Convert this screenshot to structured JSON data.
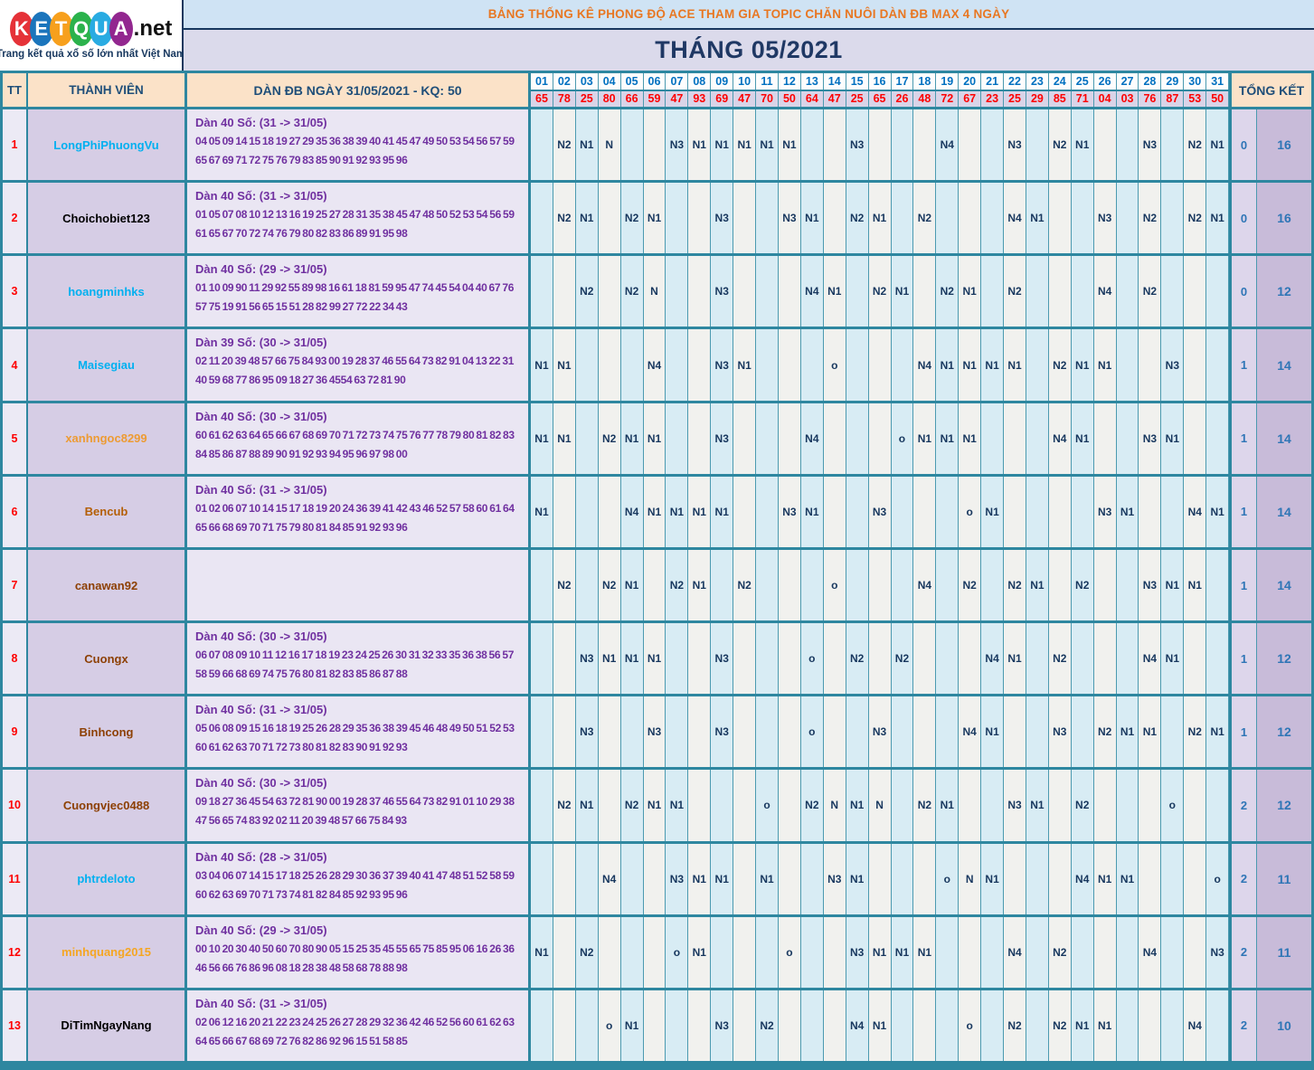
{
  "logo": {
    "letters": [
      {
        "ch": "K",
        "color": "#e53238"
      },
      {
        "ch": "E",
        "color": "#1b75bc"
      },
      {
        "ch": "T",
        "color": "#f7a01d"
      },
      {
        "ch": "Q",
        "color": "#2bb24c"
      },
      {
        "ch": "U",
        "color": "#29abe2"
      },
      {
        "ch": "A",
        "color": "#92278f"
      }
    ],
    "suffix": ".net",
    "tagline": "Trang kết quả xổ số lớn nhất Việt Nam"
  },
  "banner": {
    "title": "BẢNG THỐNG KÊ PHONG ĐỘ ACE THAM GIA TOPIC CHĂN NUÔI DÀN ĐB MAX 4 NGÀY",
    "month": "THÁNG 05/2021"
  },
  "header": {
    "tt": "TT",
    "member": "THÀNH VIÊN",
    "dan": "DÀN ĐB NGÀY 31/05/2021 - KQ: 50",
    "total": "TỔNG KẾT",
    "days": [
      "01",
      "02",
      "03",
      "04",
      "05",
      "06",
      "07",
      "08",
      "09",
      "10",
      "11",
      "12",
      "13",
      "14",
      "15",
      "16",
      "17",
      "18",
      "19",
      "20",
      "21",
      "22",
      "23",
      "24",
      "25",
      "26",
      "27",
      "28",
      "29",
      "30",
      "31"
    ],
    "day_values": [
      "65",
      "78",
      "25",
      "80",
      "66",
      "59",
      "47",
      "93",
      "69",
      "47",
      "70",
      "50",
      "64",
      "47",
      "25",
      "65",
      "26",
      "48",
      "72",
      "67",
      "23",
      "25",
      "29",
      "85",
      "71",
      "04",
      "03",
      "76",
      "87",
      "53",
      "50"
    ]
  },
  "colors": {
    "grid_teal": "#2e87a0",
    "banner_orange": "#e87722",
    "navy_text": "#17375e",
    "day_header_blue": "#0070c0",
    "value_red": "#fe0000",
    "dan_purple": "#7030a0",
    "total_blue": "#2e75b6",
    "odd_col": "#d8ecf4",
    "even_col": "#f1f1ee"
  },
  "rows": [
    {
      "tt": "1",
      "member": "LongPhiPhuongVu",
      "name_color": "#00b0f0",
      "dan_title": "Dàn 40 Số: (31 -> 31/05)",
      "dan_numbers": "04 05 09 14 15 18 19 27 29 35 36 38 39 40 41 45 47 49 50 53 54 56 57 59 65 67 69 71 72 75 76 79 83 85 90 91 92 93 95 96",
      "marks": {
        "2": "N2",
        "3": "N1",
        "4": "N",
        "7": "N3",
        "8": "N1",
        "9": "N1",
        "10": "N1",
        "11": "N1",
        "12": "N1",
        "15": "N3",
        "19": "N4",
        "22": "N3",
        "24": "N2",
        "25": "N1",
        "28": "N3",
        "30": "N2",
        "31": "N1"
      },
      "total_o": "0",
      "total_n": "16"
    },
    {
      "tt": "2",
      "member": "Choichobiet123",
      "name_color": "#000000",
      "dan_title": "Dàn 40 Số: (31 -> 31/05)",
      "dan_numbers": "01 05 07 08 10 12 13 16 19 25 27 28 31 35 38 45 47 48 50 52 53 54 56 59 61 65 67 70 72 74 76 79 80 82 83 86 89 91 95 98",
      "marks": {
        "2": "N2",
        "3": "N1",
        "5": "N2",
        "6": "N1",
        "9": "N3",
        "12": "N3",
        "13": "N1",
        "15": "N2",
        "16": "N1",
        "18": "N2",
        "22": "N4",
        "23": "N1",
        "26": "N3",
        "28": "N2",
        "30": "N2",
        "31": "N1"
      },
      "total_o": "0",
      "total_n": "16"
    },
    {
      "tt": "3",
      "member": "hoangminhks",
      "name_color": "#00b0f0",
      "dan_title": "Dàn 40 Số: (29 -> 31/05)",
      "dan_numbers": "01 10 09 90 11 29 92 55 89 98 16 61 18 81 59 95 47 74 45 54 04 40 67 76 57 75 19 91 56 65 15 51 28 82 99 27 72 22 34 43",
      "marks": {
        "3": "N2",
        "5": "N2",
        "6": "N",
        "9": "N3",
        "13": "N4",
        "14": "N1",
        "16": "N2",
        "17": "N1",
        "19": "N2",
        "20": "N1",
        "22": "N2",
        "26": "N4",
        "28": "N2"
      },
      "total_o": "0",
      "total_n": "12"
    },
    {
      "tt": "4",
      "member": "Maisegiau",
      "name_color": "#00b0f0",
      "dan_title": "Dàn 39 Số: (30 -> 31/05)",
      "dan_numbers": "02 11 20 39 48 57 66 75 84 93 00 19 28 37 46 55 64 73 82 91 04 13 22 31 40 59 68 77 86 95 09 18 27 36 4554 63 72 81 90",
      "marks": {
        "1": "N1",
        "2": "N1",
        "6": "N4",
        "9": "N3",
        "10": "N1",
        "14": "o",
        "18": "N4",
        "19": "N1",
        "20": "N1",
        "21": "N1",
        "22": "N1",
        "24": "N2",
        "25": "N1",
        "26": "N1",
        "29": "N3"
      },
      "total_o": "1",
      "total_n": "14"
    },
    {
      "tt": "5",
      "member": "xanhngoc8299",
      "name_color": "#ed9b33",
      "dan_title": "Dàn 40 Số: (30 -> 31/05)",
      "dan_numbers": "60 61 62 63 64 65 66 67 68 69 70 71 72 73 74 75 76 77 78 79 80 81 82 83 84 85 86 87 88 89 90 91 92 93 94 95 96 97 98 00",
      "marks": {
        "1": "N1",
        "2": "N1",
        "4": "N2",
        "5": "N1",
        "6": "N1",
        "9": "N3",
        "13": "N4",
        "17": "o",
        "18": "N1",
        "19": "N1",
        "20": "N1",
        "24": "N4",
        "25": "N1",
        "28": "N3",
        "29": "N1"
      },
      "total_o": "1",
      "total_n": "14"
    },
    {
      "tt": "6",
      "member": "Bencub",
      "name_color": "#b45f06",
      "dan_title": "Dàn 40 Số: (31 -> 31/05)",
      "dan_numbers": "01 02 06 07 10 14 15 17 18 19 20 24 36 39 41 42 43 46 52 57 58 60 61 64 65 66 68 69 70 71 75 79 80 81 84 85 91 92 93 96",
      "marks": {
        "1": "N1",
        "5": "N4",
        "6": "N1",
        "7": "N1",
        "8": "N1",
        "9": "N1",
        "12": "N3",
        "13": "N1",
        "16": "N3",
        "20": "o",
        "21": "N1",
        "26": "N3",
        "27": "N1",
        "30": "N4",
        "31": "N1"
      },
      "total_o": "1",
      "total_n": "14"
    },
    {
      "tt": "7",
      "member": "canawan92",
      "name_color": "#8d4004",
      "dan_title": "",
      "dan_numbers": "",
      "marks": {
        "2": "N2",
        "4": "N2",
        "5": "N1",
        "7": "N2",
        "8": "N1",
        "10": "N2",
        "14": "o",
        "18": "N4",
        "20": "N2",
        "22": "N2",
        "23": "N1",
        "25": "N2",
        "28": "N3",
        "29": "N1",
        "30": "N1"
      },
      "total_o": "1",
      "total_n": "14"
    },
    {
      "tt": "8",
      "member": "Cuongx",
      "name_color": "#8d4004",
      "dan_title": "Dàn 40 Số: (30 -> 31/05)",
      "dan_numbers": "06 07 08 09 10 11 12 16 17 18 19 23 24 25 26 30 31 32 33 35 36 38 56 57 58 59 66 68 69 74 75 76 80 81 82 83 85 86 87 88",
      "marks": {
        "3": "N3",
        "4": "N1",
        "5": "N1",
        "6": "N1",
        "9": "N3",
        "13": "o",
        "15": "N2",
        "17": "N2",
        "21": "N4",
        "22": "N1",
        "24": "N2",
        "28": "N4",
        "29": "N1"
      },
      "total_o": "1",
      "total_n": "12"
    },
    {
      "tt": "9",
      "member": "Binhcong",
      "name_color": "#8d4004",
      "dan_title": "Dàn 40 Số: (31 -> 31/05)",
      "dan_numbers": "05 06 08 09 15 16 18 19 25 26 28 29 35 36 38 39 45 46 48 49 50 51 52 53 60 61 62 63 70 71 72 73 80 81 82 83 90 91 92 93",
      "marks": {
        "3": "N3",
        "6": "N3",
        "9": "N3",
        "13": "o",
        "16": "N3",
        "20": "N4",
        "21": "N1",
        "24": "N3",
        "26": "N2",
        "27": "N1",
        "28": "N1",
        "30": "N2",
        "31": "N1"
      },
      "total_o": "1",
      "total_n": "12"
    },
    {
      "tt": "10",
      "member": "Cuongvjec0488",
      "name_color": "#8d4004",
      "dan_title": "Dàn 40 Số: (30 -> 31/05)",
      "dan_numbers": "09 18 27 36 45 54 63 72 81 90 00 19 28 37 46 55 64 73 82 91 01 10 29 38 47 56 65 74 83 92 02 11 20 39 48 57 66 75 84 93",
      "marks": {
        "2": "N2",
        "3": "N1",
        "5": "N2",
        "6": "N1",
        "7": "N1",
        "11": "o",
        "13": "N2",
        "14": "N",
        "15": "N1",
        "16": "N",
        "18": "N2",
        "19": "N1",
        "22": "N3",
        "23": "N1",
        "25": "N2",
        "29": "o"
      },
      "total_o": "2",
      "total_n": "12"
    },
    {
      "tt": "11",
      "member": "phtrdeloto",
      "name_color": "#00b0f0",
      "dan_title": "Dàn 40 Số: (28 -> 31/05)",
      "dan_numbers": "03 04 06 07 14 15 17 18 25 26 28 29 30 36 37 39 40 41 47 48 51 52 58 59 60 62 63 69 70 71 73 74 81 82 84 85 92 93 95 96",
      "marks": {
        "4": "N4",
        "7": "N3",
        "8": "N1",
        "9": "N1",
        "11": "N1",
        "14": "N3",
        "15": "N1",
        "19": "o",
        "20": "N",
        "21": "N1",
        "25": "N4",
        "26": "N1",
        "27": "N1",
        "31": "o"
      },
      "total_o": "2",
      "total_n": "11"
    },
    {
      "tt": "12",
      "member": "minhquang2015",
      "name_color": "#f5a623",
      "dan_title": "Dàn 40 Số: (29 -> 31/05)",
      "dan_numbers": "00 10 20 30 40 50 60 70 80 90 05 15 25 35 45 55 65 75 85 95 06 16 26 36 46 56 66 76 86 96 08 18 28 38 48 58 68 78 88 98",
      "marks": {
        "1": "N1",
        "3": "N2",
        "7": "o",
        "8": "N1",
        "12": "o",
        "15": "N3",
        "16": "N1",
        "17": "N1",
        "18": "N1",
        "22": "N4",
        "24": "N2",
        "28": "N4",
        "31": "N3"
      },
      "total_o": "2",
      "total_n": "11"
    },
    {
      "tt": "13",
      "member": "DiTimNgayNang",
      "name_color": "#000000",
      "dan_title": "Dàn 40 Số: (31 -> 31/05)",
      "dan_numbers": "02 06 12 16 20 21 22 23 24 25 26 27 28 29 32 36 42 46 52 56 60 61 62 63 64 65 66 67 68 69 72 76 82 86 92 96 15 51 58 85",
      "marks": {
        "4": "o",
        "5": "N1",
        "9": "N3",
        "11": "N2",
        "15": "N4",
        "16": "N1",
        "20": "o",
        "22": "N2",
        "24": "N2",
        "25": "N1",
        "26": "N1",
        "30": "N4"
      },
      "total_o": "2",
      "total_n": "10"
    }
  ]
}
